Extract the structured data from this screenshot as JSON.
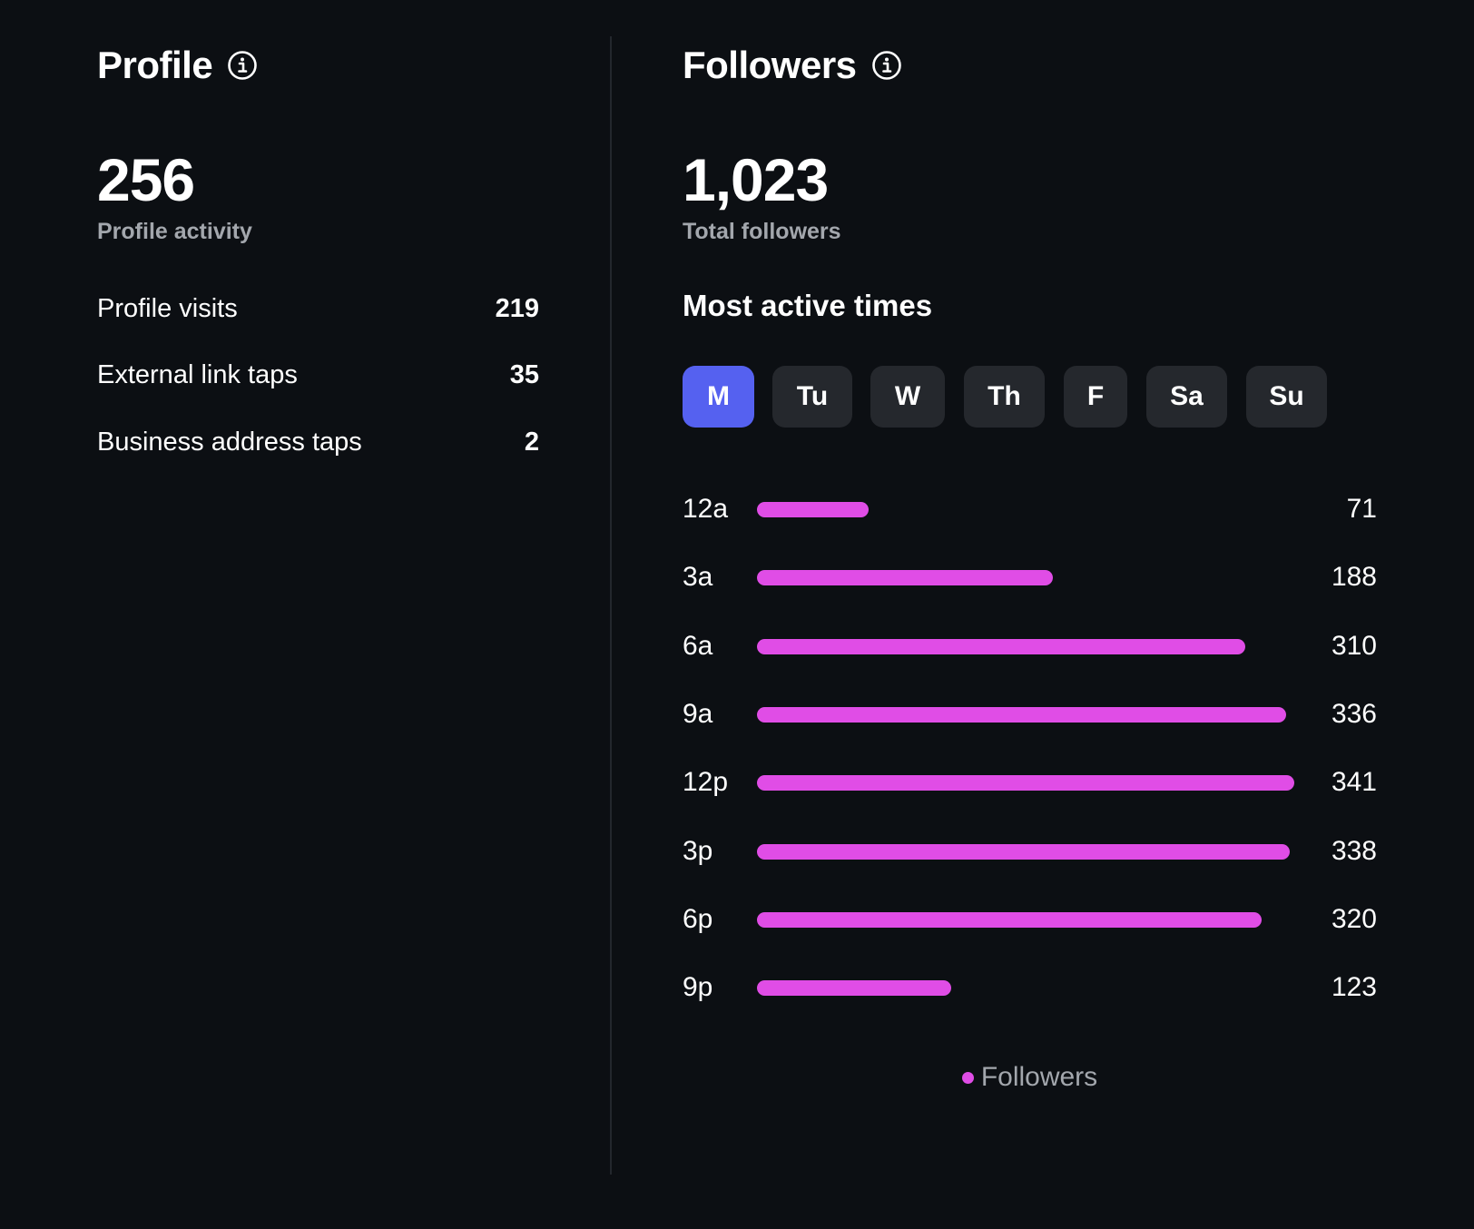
{
  "profile": {
    "title": "Profile",
    "total": "256",
    "total_label": "Profile activity",
    "stats": [
      {
        "label": "Profile visits",
        "value": "219"
      },
      {
        "label": "External link taps",
        "value": "35"
      },
      {
        "label": "Business address taps",
        "value": "2"
      }
    ]
  },
  "followers": {
    "title": "Followers",
    "total": "1,023",
    "total_label": "Total followers",
    "active_times_heading": "Most active times",
    "days": [
      "M",
      "Tu",
      "W",
      "Th",
      "F",
      "Sa",
      "Su"
    ],
    "selected_day": "M",
    "legend_label": "Followers"
  },
  "colors": {
    "background": "#0c0f13",
    "accent": "#5561f0",
    "bar": "#e04de6",
    "tab_bg": "#25282d",
    "muted_text": "#a3a7ad"
  },
  "icons": {
    "info": "info-circle-icon"
  },
  "chart_data": {
    "type": "bar",
    "orientation": "horizontal",
    "categories": [
      "12a",
      "3a",
      "6a",
      "9a",
      "12p",
      "3p",
      "6p",
      "9p"
    ],
    "series": [
      {
        "name": "Followers",
        "values": [
          71,
          188,
          310,
          336,
          341,
          338,
          320,
          123
        ]
      }
    ],
    "xlim": [
      0,
      341
    ],
    "legend": "bottom-center",
    "grid": false
  }
}
